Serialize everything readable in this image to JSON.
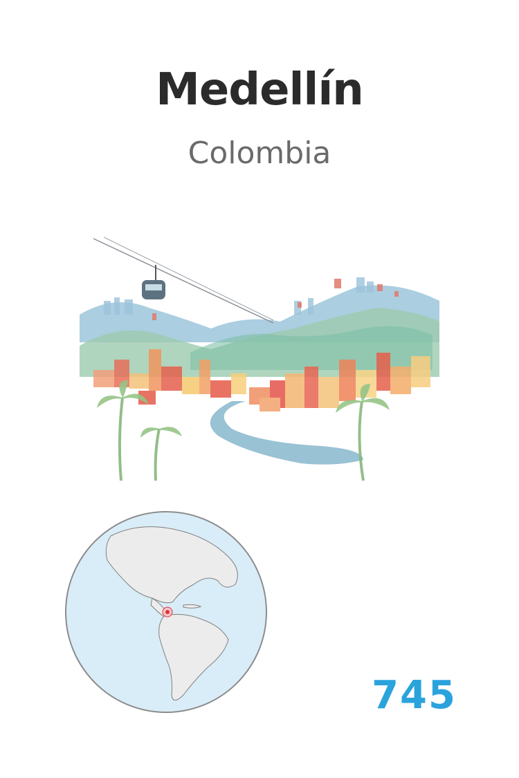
{
  "card": {
    "city": "Medellín",
    "country": "Colombia",
    "number": "745"
  },
  "illustration": {
    "subject": "watercolor cityscape with cable car, green mountains, river and palm trees",
    "icons": [
      "cable-car-icon",
      "palm-tree-icon"
    ]
  },
  "globe": {
    "subject": "globe centered on the Americas with location marker",
    "icons": [
      "globe-icon",
      "location-marker-icon"
    ]
  },
  "colors": {
    "title": "#2b2b2b",
    "subtitle": "#6a6a6a",
    "number": "#2aa3dc",
    "ocean": "#d9edf8",
    "land": "#ececec",
    "marker": "#e0323c"
  }
}
